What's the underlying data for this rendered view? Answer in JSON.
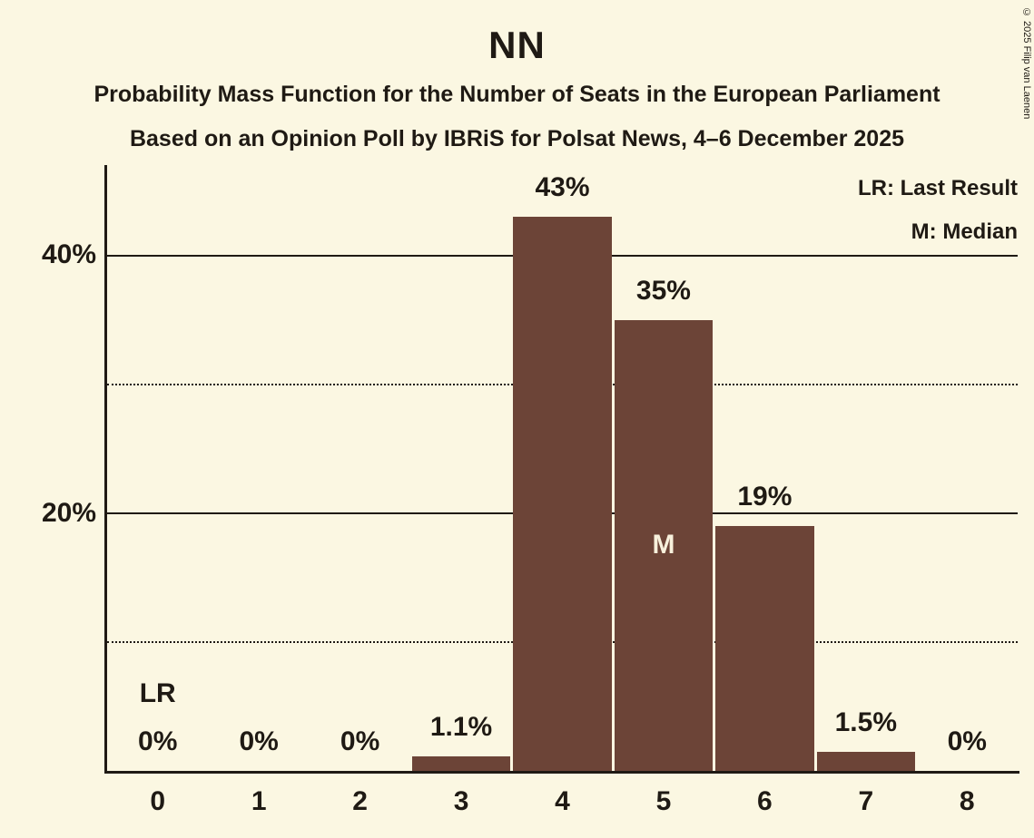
{
  "copyright": "© 2025 Filip van Laenen",
  "legend": {
    "last_result": "LR: Last Result",
    "median": "M: Median"
  },
  "colors": {
    "background": "#FBF7E2",
    "bar": "#6C4437",
    "text": "#1F1A14",
    "median_text": "#F8F1DC"
  },
  "chart_data": {
    "type": "bar",
    "title": "NN",
    "subtitle": "Probability Mass Function for the Number of Seats in the European Parliament",
    "source_line": "Based on an Opinion Poll by IBRiS for Polsat News, 4–6 December 2025",
    "xlabel": "",
    "ylabel": "",
    "categories": [
      "0",
      "1",
      "2",
      "3",
      "4",
      "5",
      "6",
      "7",
      "8"
    ],
    "values": [
      0,
      0,
      0,
      1.1,
      43,
      35,
      19,
      1.5,
      0
    ],
    "value_labels": [
      "0%",
      "0%",
      "0%",
      "1.1%",
      "43%",
      "35%",
      "19%",
      "1.5%",
      "0%"
    ],
    "ylim": [
      0,
      47
    ],
    "grid": "horizontal",
    "legend_position": "top-right",
    "yticks": [
      {
        "value": 10,
        "style": "dotted",
        "label": ""
      },
      {
        "value": 20,
        "style": "solid",
        "label": "20%"
      },
      {
        "value": 30,
        "style": "dotted",
        "label": ""
      },
      {
        "value": 40,
        "style": "solid",
        "label": "40%"
      }
    ],
    "annotations": [
      {
        "type": "last_result",
        "category_index": 0,
        "label": "LR"
      },
      {
        "type": "median",
        "category_index": 5,
        "label": "M"
      }
    ]
  }
}
